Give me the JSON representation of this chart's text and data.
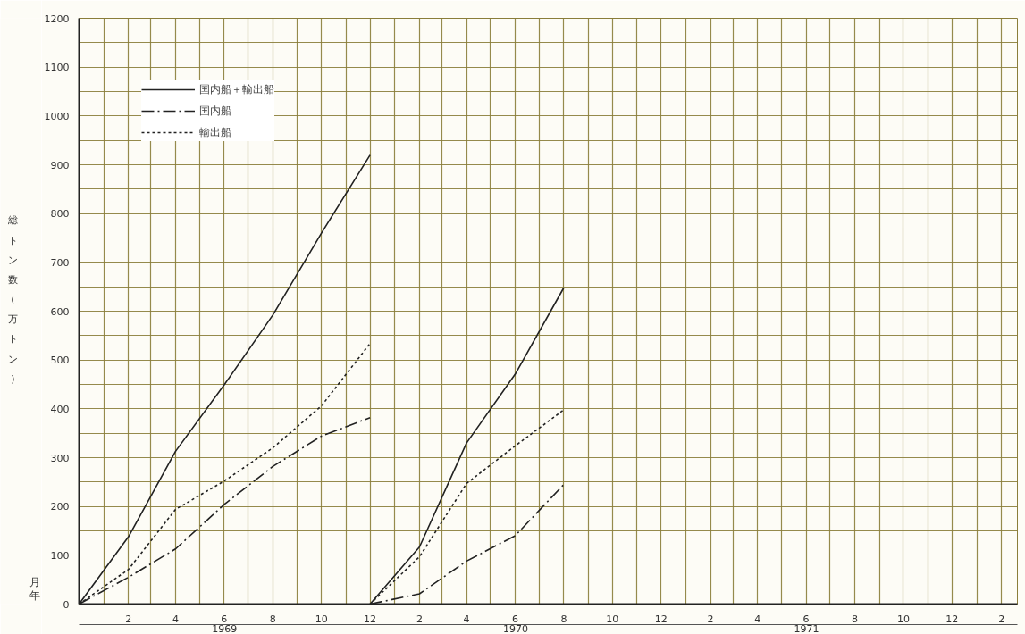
{
  "chart_data": {
    "type": "line",
    "xlabel": "月",
    "ylabel": "総トン数(万トン)",
    "annotations": [
      "年",
      "1969",
      "1970",
      "1971"
    ],
    "series": [
      {
        "name": "国内船＋輸出船",
        "color": "#222222",
        "line_style": "solid",
        "x": [
          "1968-12",
          "1969-02",
          "1969-04",
          "1969-06",
          "1969-08",
          "1969-10",
          "1969-12"
        ],
        "values": [
          0,
          138,
          313,
          449,
          592,
          760,
          920
        ]
      },
      {
        "name": "国内船",
        "color": "#222222",
        "line_style": "dashdot",
        "x": [
          "1968-12",
          "1969-02",
          "1969-04",
          "1969-06",
          "1969-08",
          "1969-10",
          "1969-12"
        ],
        "values": [
          0,
          55,
          113,
          204,
          282,
          344,
          382
        ]
      },
      {
        "name": "輸出船",
        "color": "#222222",
        "line_style": "dotted",
        "x": [
          "1968-12",
          "1969-02",
          "1969-04",
          "1969-06",
          "1969-08",
          "1969-10",
          "1969-12"
        ],
        "values": [
          0,
          71,
          194,
          252,
          320,
          406,
          534
        ]
      },
      {
        "color": "#222222",
        "line_style": "solid",
        "x": [
          "1969-12",
          "1970-02",
          "1970-04",
          "1970-06",
          "1970-08"
        ],
        "values": [
          0,
          117,
          330,
          471,
          648
        ]
      },
      {
        "color": "#222222",
        "line_style": "dashdot",
        "x": [
          "1969-12",
          "1970-02",
          "1970-04",
          "1970-06",
          "1970-08"
        ],
        "values": [
          0,
          21,
          88,
          140,
          245
        ]
      },
      {
        "color": "#222222",
        "line_style": "dotted",
        "x": [
          "1969-12",
          "1970-02",
          "1970-04",
          "1970-06",
          "1970-08"
        ],
        "values": [
          0,
          97,
          247,
          324,
          398
        ]
      }
    ],
    "xlim": [
      "1968-12",
      "1972-02-21"
    ],
    "xticks": [
      {
        "value": "1968-12",
        "label": null
      },
      {
        "value": "1969-01",
        "label": null
      },
      {
        "value": "1969-02",
        "label": "2"
      },
      {
        "value": "1969-03",
        "label": null
      },
      {
        "value": "1969-04",
        "label": "4"
      },
      {
        "value": "1969-05",
        "label": null
      },
      {
        "value": "1969-06",
        "label": "6"
      },
      {
        "value": "1969-07",
        "label": null
      },
      {
        "value": "1969-08",
        "label": "8"
      },
      {
        "value": "1969-09",
        "label": null
      },
      {
        "value": "1969-10",
        "label": "10"
      },
      {
        "value": "1969-11",
        "label": null
      },
      {
        "value": "1969-12",
        "label": "12"
      },
      {
        "value": "1970-01",
        "label": null
      },
      {
        "value": "1970-02",
        "label": "2"
      },
      {
        "value": "1970-03",
        "label": null
      },
      {
        "value": "1970-04",
        "label": "4"
      },
      {
        "value": "1970-05",
        "label": null
      },
      {
        "value": "1970-06",
        "label": "6"
      },
      {
        "value": "1970-07",
        "label": null
      },
      {
        "value": "1970-08",
        "label": "8"
      },
      {
        "value": "1970-09",
        "label": null
      },
      {
        "value": "1970-10",
        "label": "10"
      },
      {
        "value": "1970-11",
        "label": null
      },
      {
        "value": "1970-12",
        "label": "12"
      },
      {
        "value": "1971-01",
        "label": null
      },
      {
        "value": "1971-02",
        "label": "2"
      },
      {
        "value": "1971-03",
        "label": null
      },
      {
        "value": "1971-04",
        "label": "4"
      },
      {
        "value": "1971-05",
        "label": null
      },
      {
        "value": "1971-06",
        "label": "6"
      },
      {
        "value": "1971-07",
        "label": null
      },
      {
        "value": "1971-08",
        "label": "8"
      },
      {
        "value": "1971-09",
        "label": null
      },
      {
        "value": "1971-10",
        "label": "10"
      },
      {
        "value": "1971-11",
        "label": null
      },
      {
        "value": "1971-12",
        "label": "12"
      },
      {
        "value": "1972-01",
        "label": null
      },
      {
        "value": "1972-02",
        "label": "2"
      }
    ],
    "ylim": [
      0,
      1200
    ],
    "yticks": [
      0,
      {
        "value": 50,
        "label": null
      },
      100,
      {
        "value": 150,
        "label": null
      },
      200,
      {
        "value": 250,
        "label": null
      },
      300,
      {
        "value": 350,
        "label": null
      },
      400,
      {
        "value": 450,
        "label": null
      },
      500,
      {
        "value": 550,
        "label": null
      },
      600,
      {
        "value": 650,
        "label": null
      },
      700,
      {
        "value": 750,
        "label": null
      },
      800,
      {
        "value": 850,
        "label": null
      },
      900,
      {
        "value": 950,
        "label": null
      },
      1000,
      {
        "value": 1050,
        "label": null
      },
      1100,
      {
        "value": 1150,
        "label": null
      },
      1200
    ],
    "grid": true,
    "legend": "top left"
  }
}
